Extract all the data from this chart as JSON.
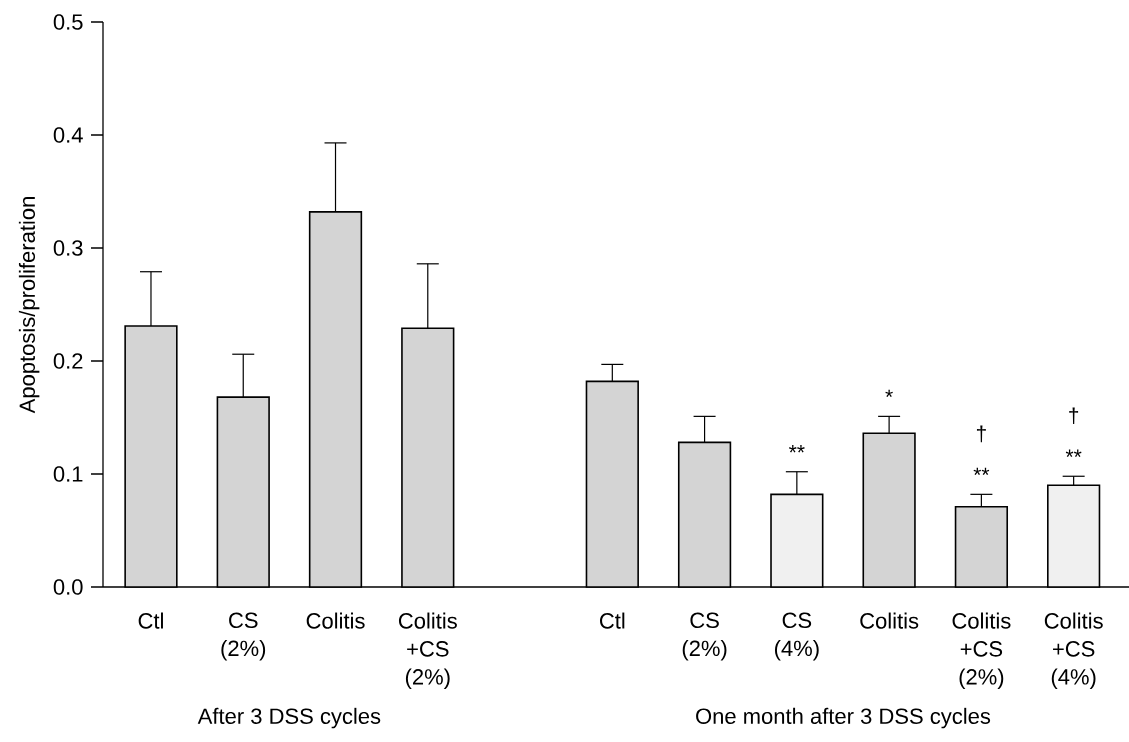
{
  "chart_data": {
    "type": "bar",
    "ylabel": "Apoptosis/proliferation",
    "categories": [
      "Ctl",
      "CS (2%)",
      "Colitis",
      "Colitis +CS (2%)",
      null,
      "Ctl",
      "CS (2%)",
      "CS (4%)",
      "Colitis",
      "Colitis +CS (2%)",
      "Colitis +CS (4%)"
    ],
    "values": [
      0.231,
      0.168,
      0.332,
      0.229,
      null,
      0.182,
      0.128,
      0.082,
      0.136,
      0.071,
      0.09
    ],
    "errors": [
      0.048,
      0.038,
      0.061,
      0.057,
      null,
      0.015,
      0.023,
      0.02,
      0.015,
      0.011,
      0.008
    ],
    "colors": [
      "#d4d4d4",
      "#d4d4d4",
      "#d4d4d4",
      "#d4d4d4",
      "#d4d4d4",
      "#d4d4d4",
      "#d4d4d4",
      "#f0f0f0",
      "#d4d4d4",
      "#d4d4d4",
      "#f0f0f0"
    ],
    "ylim": [
      0,
      0.5
    ],
    "yticks": [
      {
        "value": 0,
        "label": "0.0"
      },
      0.1,
      0.2,
      0.3,
      0.4,
      0.5
    ],
    "annotations": [
      "After 3 DSS cycles",
      "One month after 3 DSS cycles",
      "*",
      "**",
      "**",
      "†",
      "**",
      "†"
    ]
  }
}
